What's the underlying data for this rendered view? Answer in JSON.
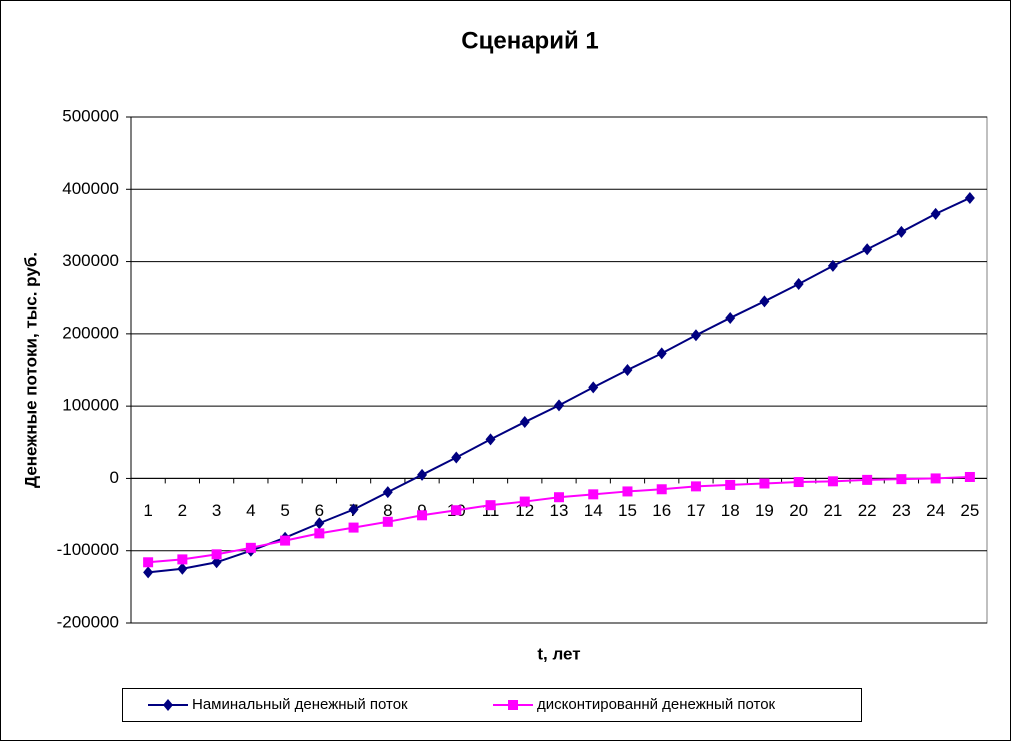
{
  "chart_data": {
    "type": "line",
    "title": "Сценарий 1",
    "y_label": "Денежные потоки, тыс. руб.",
    "x_label": "t, лет",
    "categories": [
      "1",
      "2",
      "3",
      "4",
      "5",
      "6",
      "7",
      "8",
      "9",
      "10",
      "11",
      "12",
      "13",
      "14",
      "15",
      "16",
      "17",
      "18",
      "19",
      "20",
      "21",
      "22",
      "23",
      "24",
      "25"
    ],
    "series": [
      {
        "name": "Наминальный денежный поток",
        "color": "#000080",
        "marker": "diamond",
        "values": [
          -130000,
          -125000,
          -116000,
          -100000,
          -82000,
          -62000,
          -43000,
          -19000,
          5000,
          29000,
          54000,
          78000,
          101000,
          126000,
          150000,
          173000,
          198000,
          222000,
          245000,
          269000,
          294000,
          317000,
          341000,
          366000,
          388000
        ]
      },
      {
        "name": "дисконтированнй денежный поток",
        "color": "#ff00ff",
        "marker": "square",
        "values": [
          -116000,
          -112000,
          -105000,
          -96000,
          -86000,
          -76000,
          -68000,
          -60000,
          -51000,
          -44000,
          -37000,
          -32000,
          -26000,
          -22000,
          -18000,
          -15000,
          -11000,
          -9000,
          -7000,
          -5000,
          -4000,
          -2000,
          -1000,
          0,
          2000
        ]
      }
    ],
    "ylim": [
      -200000,
      500000
    ],
    "yticks": [
      -200000,
      -100000,
      0,
      100000,
      200000,
      300000,
      400000,
      500000
    ],
    "grid": true,
    "legend": "bottom"
  }
}
